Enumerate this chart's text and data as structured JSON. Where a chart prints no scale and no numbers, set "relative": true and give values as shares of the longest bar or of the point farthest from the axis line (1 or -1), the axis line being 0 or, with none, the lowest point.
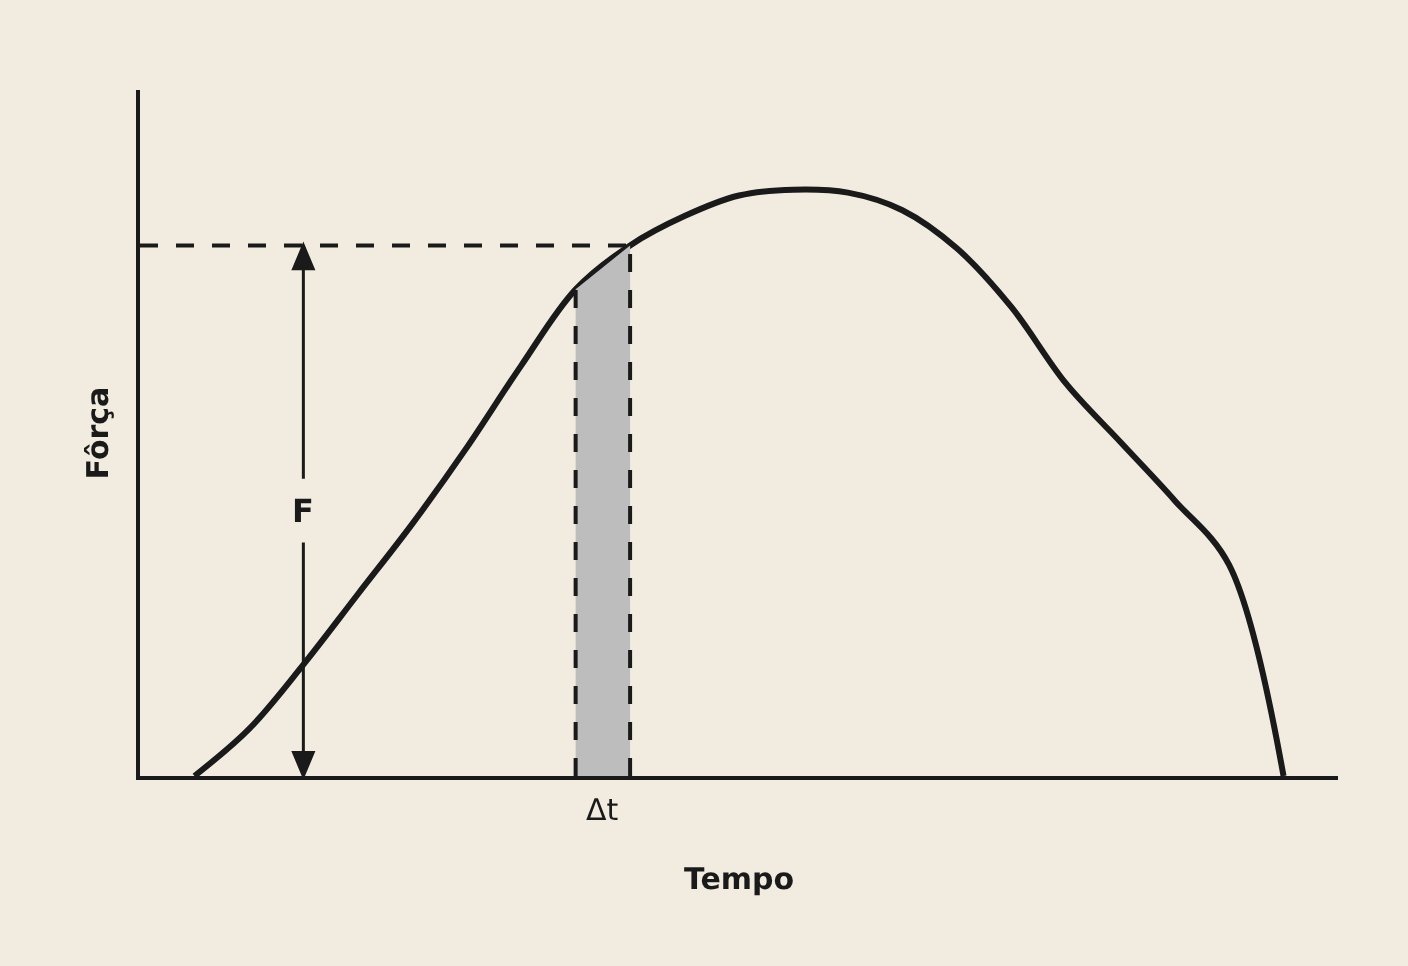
{
  "chart_data": {
    "type": "line",
    "relative": true,
    "xlabel": "Tempo",
    "ylabel": "Fôrça",
    "categories": [
      null,
      null,
      null,
      null,
      null,
      null,
      null,
      null,
      null,
      null,
      null,
      null,
      null,
      null,
      null,
      null,
      null,
      null,
      null,
      null,
      null,
      null,
      null
    ],
    "series": [
      {
        "color": "#1a1a1a",
        "values": [
          null,
          0,
          0.08,
          0.19,
          0.31,
          0.43,
          0.56,
          0.7,
          0.83,
          0.905,
          0.955,
          0.99,
          1,
          0.995,
          0.965,
          0.9,
          0.8,
          0.67,
          0.57,
          0.47,
          0.36,
          0,
          null
        ]
      },
      {
        "type": "area",
        "color": "#bdbdbd",
        "line_style": "dashed",
        "values": [
          null,
          null,
          null,
          null,
          null,
          null,
          null,
          null,
          0.83,
          0.905,
          null,
          null,
          null,
          null,
          null,
          null,
          null,
          null,
          null,
          null,
          null,
          null,
          null
        ]
      },
      {
        "color": "#1a1a1a",
        "line_style": "dashed",
        "values": [
          0.905,
          0.905,
          0.905,
          0.905,
          0.905,
          0.905,
          0.905,
          0.905,
          0.905,
          0.905,
          null,
          null,
          null,
          null,
          null,
          null,
          null,
          null,
          null,
          null,
          null,
          null,
          null
        ]
      }
    ],
    "annotations": [
      "F",
      "Δt"
    ],
    "tick_labels": false,
    "grid": false,
    "marker": "none",
    "line_style": "solid"
  }
}
